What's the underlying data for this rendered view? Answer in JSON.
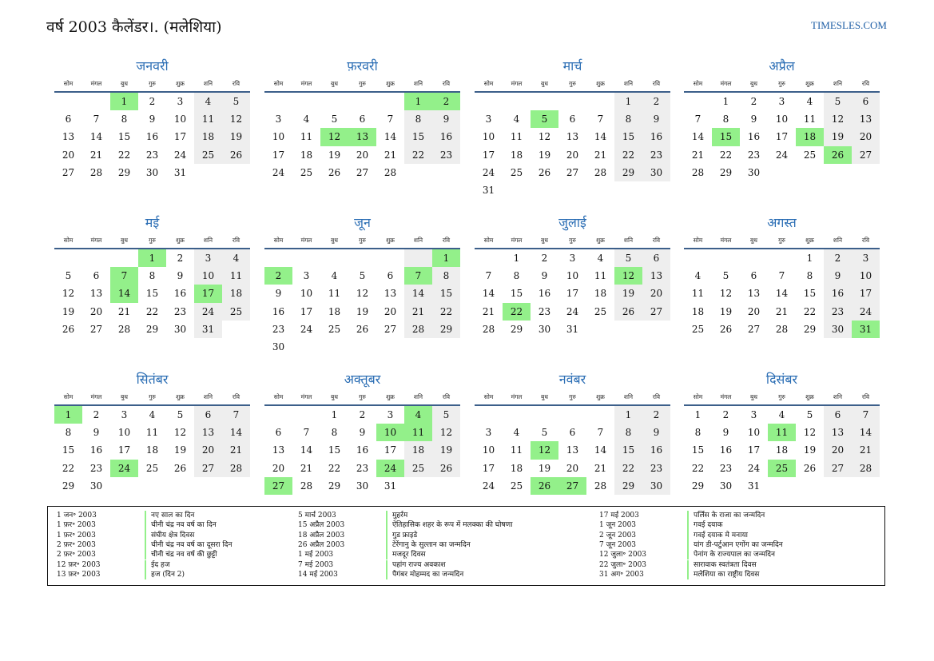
{
  "header": {
    "title": "वर्ष 2003 कैलेंडर।. (मलेशिया)",
    "site": "TIMESLES.COM"
  },
  "weekdays": [
    "सोम",
    "मंगल",
    "बुध",
    "गुरु",
    "शुक्र",
    "शनि",
    "रवि"
  ],
  "colors": {
    "accent": "#2a6db4",
    "holiday": "#93f08a",
    "weekend": "#eeeeee"
  },
  "months": [
    {
      "name": "जनवरी",
      "offset": 2,
      "days": 31,
      "holidays": [
        1
      ]
    },
    {
      "name": "फ़रवरी",
      "offset": 5,
      "days": 28,
      "holidays": [
        1,
        2,
        12,
        13
      ]
    },
    {
      "name": "मार्च",
      "offset": 5,
      "days": 31,
      "holidays": [
        5
      ]
    },
    {
      "name": "अप्रैल",
      "offset": 1,
      "days": 30,
      "holidays": [
        15,
        18,
        26
      ]
    },
    {
      "name": "मई",
      "offset": 3,
      "days": 31,
      "holidays": [
        1,
        7,
        14,
        17
      ]
    },
    {
      "name": "जून",
      "offset": 6,
      "days": 30,
      "holidays": [
        1,
        2,
        7
      ]
    },
    {
      "name": "जुलाई",
      "offset": 1,
      "days": 31,
      "holidays": [
        12,
        22
      ]
    },
    {
      "name": "अगस्त",
      "offset": 4,
      "days": 31,
      "holidays": [
        31
      ]
    },
    {
      "name": "सितंबर",
      "offset": 0,
      "days": 30,
      "holidays": [
        1,
        24
      ]
    },
    {
      "name": "अक्तूबर",
      "offset": 2,
      "days": 31,
      "holidays": [
        4,
        10,
        11,
        24,
        27
      ]
    },
    {
      "name": "नवंबर",
      "offset": 5,
      "days": 30,
      "holidays": [
        12,
        26,
        27
      ]
    },
    {
      "name": "दिसंबर",
      "offset": 0,
      "days": 31,
      "holidays": [
        11,
        25
      ]
    }
  ],
  "legend": [
    [
      {
        "date": "1 जन॰ 2003",
        "name": "नए साल का दिन"
      },
      {
        "date": "1 फ़र॰ 2003",
        "name": "चीनी चंद्र नव वर्ष का दिन"
      },
      {
        "date": "1 फ़र॰ 2003",
        "name": "संघीय क्षेत्र दिवस"
      },
      {
        "date": "2 फ़र॰ 2003",
        "name": "चीनी चंद्र नव वर्ष का दूसरा दिन"
      },
      {
        "date": "2 फ़र॰ 2003",
        "name": "चीनी चंद्र नव वर्ष की छुट्टी"
      },
      {
        "date": "12 फ़र॰ 2003",
        "name": "ईद हज"
      },
      {
        "date": "13 फ़र॰ 2003",
        "name": "हज (दिन 2)"
      }
    ],
    [
      {
        "date": "5 मार्च 2003",
        "name": "मुहर्रम"
      },
      {
        "date": "15 अप्रैल 2003",
        "name": "ऐतिहासिक शहर के रूप में मलक्का की घोषणा"
      },
      {
        "date": "18 अप्रैल 2003",
        "name": "गुड फ्राइडे"
      },
      {
        "date": "26 अप्रैल 2003",
        "name": "टेरेंगानु के सुल्तान का जन्मदिन"
      },
      {
        "date": "1 मई 2003",
        "name": "मजदूर दिवस"
      },
      {
        "date": "7 मई 2003",
        "name": "पहांग राज्य अवकाश"
      },
      {
        "date": "14 मई 2003",
        "name": "पैगंबर मोहम्मद का जन्मदिन"
      }
    ],
    [
      {
        "date": "17 मई 2003",
        "name": "पर्लिस के राजा का जन्मदिन"
      },
      {
        "date": "1 जून 2003",
        "name": "गवई दयाक"
      },
      {
        "date": "2 जून 2003",
        "name": "गवई दयाक मे मनाया"
      },
      {
        "date": "7 जून 2003",
        "name": "यांग डी-पर्टुआन एगोंग का जन्मदिन"
      },
      {
        "date": "12 जुला॰ 2003",
        "name": "पेनांग के राज्यपाल का जन्मदिन"
      },
      {
        "date": "22 जुला॰ 2003",
        "name": "सारावाक स्वतंत्रता दिवस"
      },
      {
        "date": "31 अग॰ 2003",
        "name": "मलेशिया का राष्ट्रीय दिवस"
      }
    ]
  ]
}
